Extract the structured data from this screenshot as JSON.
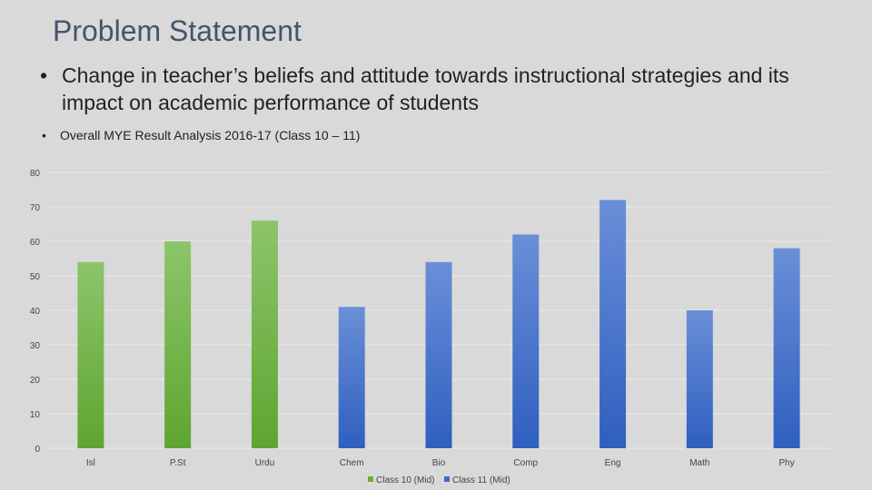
{
  "slide": {
    "title": "Problem Statement",
    "bullet_main": "Change in teacher’s beliefs and attitude towards instructional strategies and its impact on academic performance of students",
    "bullet_sub": "Overall MYE Result Analysis  2016-17 (Class 10 – 11)",
    "bullet_symbol": "•"
  },
  "chart_data": {
    "type": "bar",
    "title": "",
    "xlabel": "",
    "ylabel": "",
    "categories": [
      "Isl",
      "P.St",
      "Urdu",
      "Chem",
      "Bio",
      "Comp",
      "Eng",
      "Math",
      "Phy"
    ],
    "series": [
      {
        "name": "Class 10 (Mid)",
        "color": "#6aad3c",
        "values": [
          54,
          60,
          66,
          null,
          null,
          null,
          null,
          null,
          null
        ]
      },
      {
        "name": "Class 11 (Mid)",
        "color": "#3d6cc6",
        "values": [
          null,
          null,
          null,
          41,
          54,
          62,
          72,
          40,
          58
        ]
      }
    ],
    "ylim": [
      0,
      80
    ],
    "yticks": [
      0,
      10,
      20,
      30,
      40,
      50,
      60,
      70,
      80
    ],
    "grid": true,
    "legend_position": "bottom-center"
  }
}
